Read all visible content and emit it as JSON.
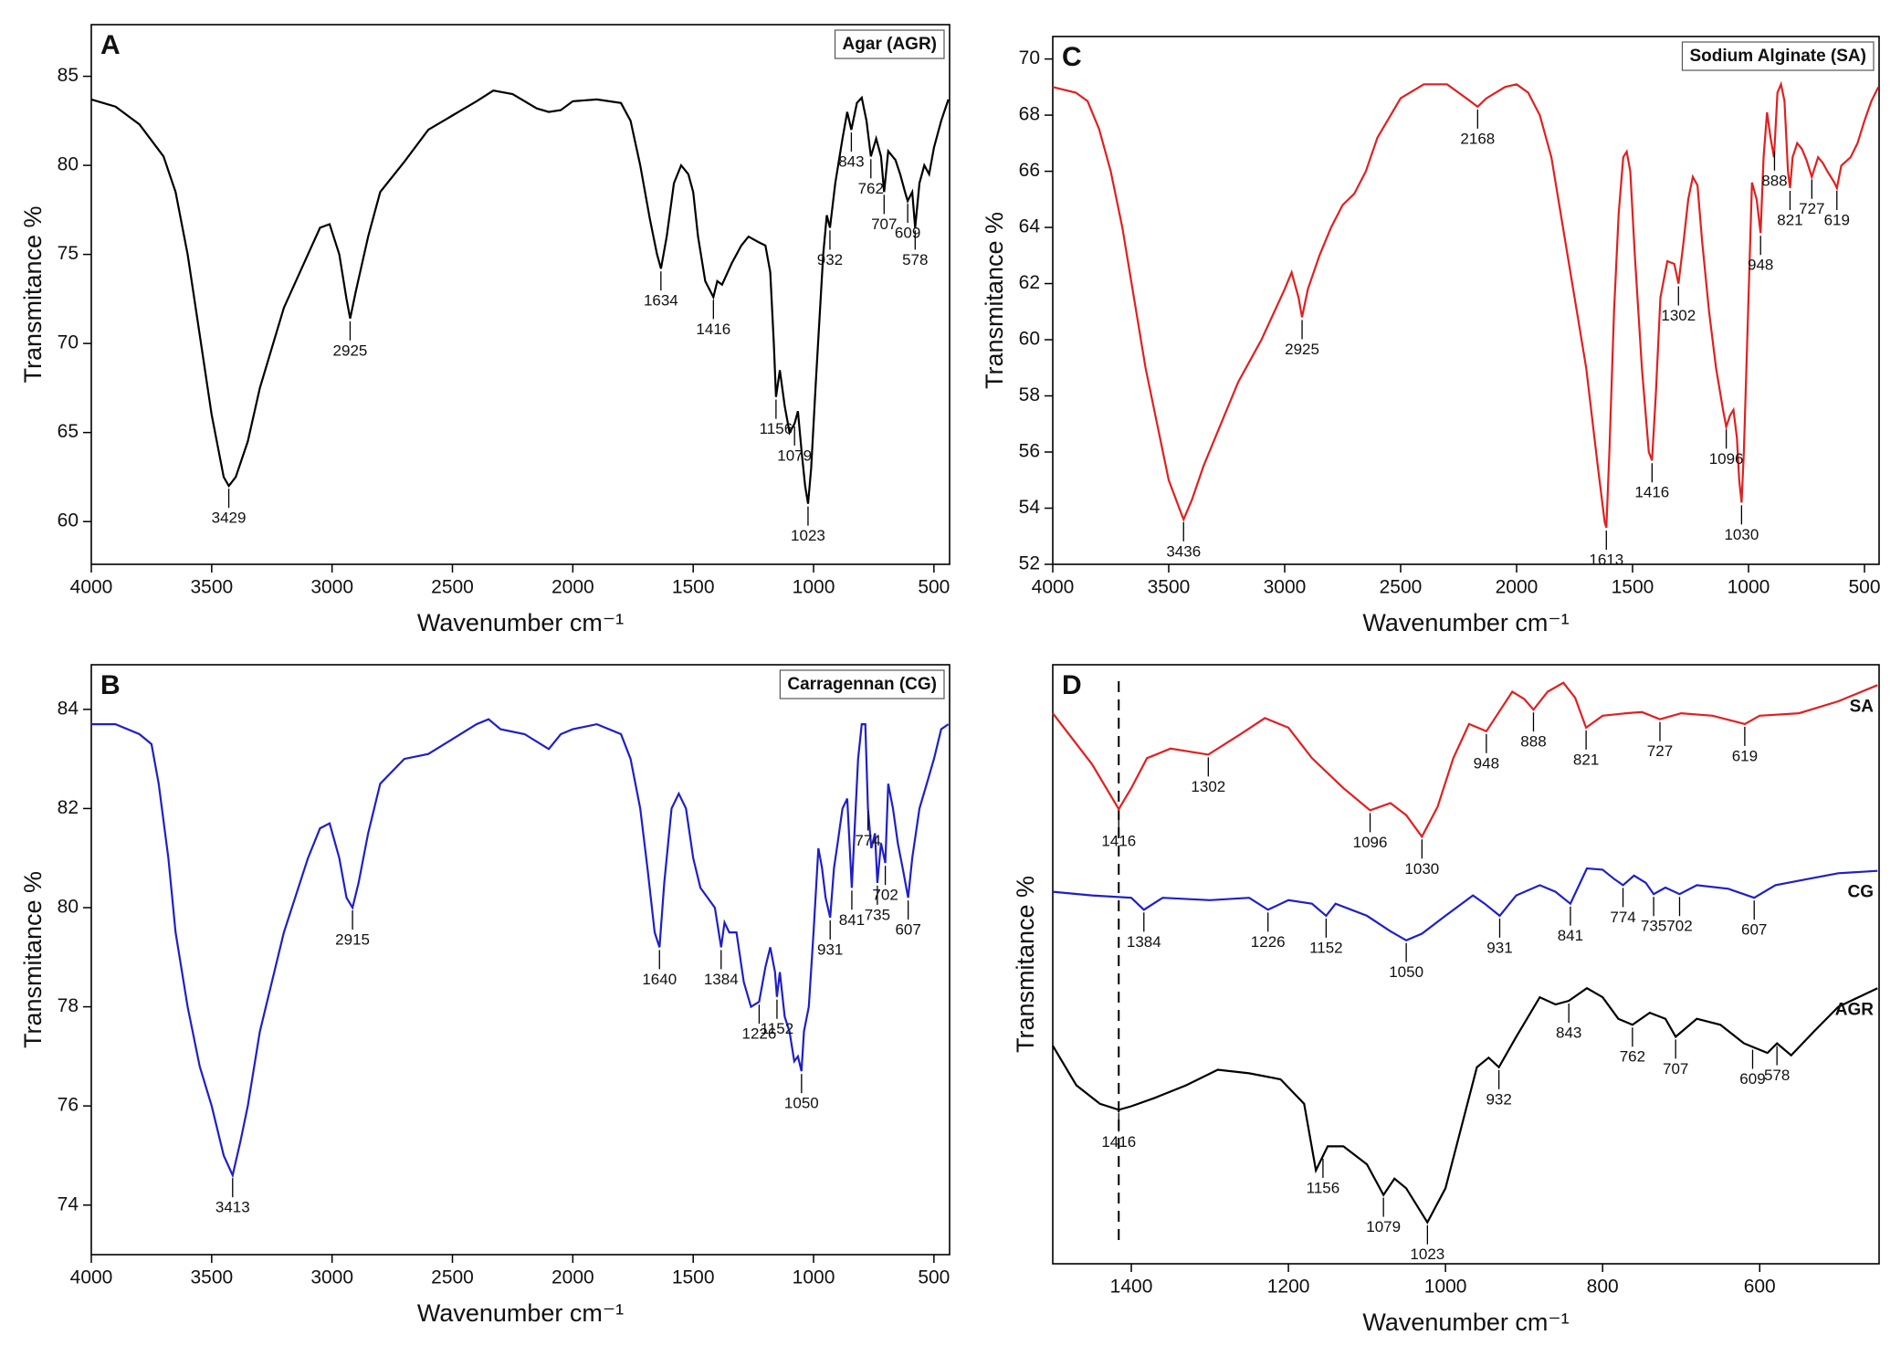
{
  "chart_data": [
    {
      "type": "line",
      "panel": "A",
      "xlabel": "Wavenumber cm⁻¹",
      "ylabel": "Transmitance %",
      "xlim": [
        4000,
        435
      ],
      "ylim": [
        57.6,
        87.9
      ],
      "xticks": [
        4000,
        3500,
        3000,
        2500,
        2000,
        1500,
        1000,
        500
      ],
      "yticks": [
        60,
        65,
        70,
        75,
        80,
        85
      ],
      "series": [
        {
          "name": "Agar (AGR)",
          "color": "#000000",
          "x": [
            4000,
            3900,
            3800,
            3700,
            3650,
            3600,
            3550,
            3500,
            3450,
            3429,
            3400,
            3350,
            3300,
            3200,
            3100,
            3050,
            3010,
            2970,
            2940,
            2925,
            2900,
            2850,
            2800,
            2700,
            2600,
            2500,
            2400,
            2330,
            2250,
            2150,
            2100,
            2050,
            2000,
            1900,
            1800,
            1760,
            1720,
            1680,
            1650,
            1634,
            1610,
            1580,
            1550,
            1520,
            1500,
            1480,
            1450,
            1416,
            1400,
            1380,
            1340,
            1300,
            1270,
            1230,
            1200,
            1180,
            1165,
            1156,
            1140,
            1120,
            1100,
            1079,
            1065,
            1050,
            1035,
            1023,
            1010,
            990,
            960,
            945,
            932,
            910,
            880,
            860,
            843,
            820,
            800,
            780,
            762,
            740,
            720,
            707,
            690,
            660,
            640,
            620,
            609,
            590,
            578,
            560,
            540,
            520,
            500,
            470,
            440
          ],
          "values": [
            83.7,
            83.3,
            82.3,
            80.5,
            78.5,
            75,
            70.5,
            66,
            62.5,
            62,
            62.5,
            64.5,
            67.5,
            72,
            75,
            76.5,
            76.7,
            75,
            72.5,
            71.4,
            73,
            76,
            78.5,
            80.2,
            82,
            82.8,
            83.6,
            84.2,
            84,
            83.2,
            83,
            83.1,
            83.6,
            83.7,
            83.5,
            82.5,
            80,
            77,
            75,
            74.2,
            76,
            79,
            80,
            79.5,
            78.5,
            76,
            73.5,
            72.6,
            73.5,
            73.3,
            74.5,
            75.5,
            76,
            75.7,
            75.5,
            74,
            70,
            67,
            68.5,
            66.5,
            65,
            65.5,
            66.2,
            64,
            62,
            61,
            63,
            68,
            75,
            77.2,
            76.5,
            79,
            81.5,
            83,
            82,
            83.5,
            83.8,
            82.5,
            80.5,
            81.5,
            80.5,
            78.5,
            80.8,
            80.3,
            79.5,
            78.5,
            78,
            78.5,
            76.5,
            79,
            80,
            79.5,
            81,
            82.5,
            83.7
          ],
          "peaks": [
            3429,
            2925,
            1634,
            1416,
            1156,
            1079,
            1023,
            932,
            843,
            762,
            707,
            609,
            578
          ]
        }
      ]
    },
    {
      "type": "line",
      "panel": "B",
      "xlabel": "Wavenumber cm⁻¹",
      "ylabel": "Transmitance %",
      "xlim": [
        4000,
        435
      ],
      "ylim": [
        73,
        84.9
      ],
      "xticks": [
        4000,
        3500,
        3000,
        2500,
        2000,
        1500,
        1000,
        500
      ],
      "yticks": [
        74,
        76,
        78,
        80,
        82,
        84
      ],
      "series": [
        {
          "name": "Carragennan (CG)",
          "color": "#1f1fc8",
          "x": [
            4000,
            3900,
            3800,
            3750,
            3720,
            3680,
            3650,
            3600,
            3550,
            3500,
            3450,
            3413,
            3380,
            3350,
            3300,
            3200,
            3100,
            3050,
            3010,
            2970,
            2940,
            2915,
            2890,
            2850,
            2800,
            2700,
            2600,
            2500,
            2400,
            2350,
            2300,
            2200,
            2100,
            2050,
            2000,
            1900,
            1800,
            1760,
            1720,
            1690,
            1660,
            1640,
            1620,
            1590,
            1560,
            1530,
            1500,
            1470,
            1440,
            1410,
            1384,
            1370,
            1350,
            1320,
            1290,
            1260,
            1226,
            1200,
            1180,
            1160,
            1152,
            1140,
            1120,
            1100,
            1080,
            1065,
            1050,
            1040,
            1020,
            1000,
            980,
            965,
            950,
            931,
            915,
            900,
            880,
            860,
            841,
            830,
            815,
            800,
            785,
            774,
            760,
            745,
            735,
            720,
            702,
            690,
            670,
            650,
            630,
            607,
            590,
            560,
            530,
            500,
            470,
            440
          ],
          "values": [
            83.7,
            83.7,
            83.5,
            83.3,
            82.5,
            81,
            79.5,
            78,
            76.8,
            76,
            75,
            74.6,
            75.3,
            76,
            77.5,
            79.5,
            81,
            81.6,
            81.7,
            81,
            80.2,
            80,
            80.5,
            81.5,
            82.5,
            83,
            83.1,
            83.4,
            83.7,
            83.8,
            83.6,
            83.5,
            83.2,
            83.5,
            83.6,
            83.7,
            83.5,
            83,
            82,
            80.8,
            79.5,
            79.2,
            80.5,
            82,
            82.3,
            82,
            81,
            80.4,
            80.2,
            80,
            79.2,
            79.7,
            79.5,
            79.5,
            78.5,
            78,
            78.1,
            78.8,
            79.2,
            78.7,
            78.2,
            78.7,
            77.8,
            77.5,
            76.9,
            77,
            76.7,
            77.5,
            78,
            79.5,
            81.2,
            80.8,
            80.2,
            79.8,
            80.8,
            81.3,
            82,
            82.2,
            80.4,
            81.5,
            83,
            83.7,
            83.7,
            82,
            81.2,
            81.5,
            80.5,
            81.3,
            80.9,
            82.5,
            82,
            81.3,
            80.8,
            80.2,
            81,
            82,
            82.5,
            83,
            83.6,
            83.7
          ],
          "peaks": [
            3413,
            2915,
            1640,
            1384,
            1226,
            1152,
            1050,
            931,
            841,
            774,
            735,
            702,
            607
          ]
        }
      ]
    },
    {
      "type": "line",
      "panel": "C",
      "xlabel": "Wavenumber cm⁻¹",
      "ylabel": "Transmitance %",
      "xlim": [
        4000,
        437
      ],
      "ylim": [
        52,
        70.8
      ],
      "xticks": [
        4000,
        3500,
        3000,
        2500,
        2000,
        1500,
        1000,
        500
      ],
      "yticks": [
        52,
        54,
        56,
        58,
        60,
        62,
        64,
        66,
        68,
        70
      ],
      "series": [
        {
          "name": "Sodium Alginate (SA)",
          "color": "#e02020",
          "x": [
            4000,
            3900,
            3850,
            3800,
            3750,
            3700,
            3650,
            3600,
            3550,
            3500,
            3450,
            3436,
            3400,
            3350,
            3300,
            3200,
            3100,
            3000,
            2970,
            2940,
            2925,
            2900,
            2850,
            2800,
            2750,
            2700,
            2650,
            2600,
            2500,
            2400,
            2300,
            2250,
            2200,
            2168,
            2130,
            2050,
            2000,
            1950,
            1900,
            1850,
            1800,
            1750,
            1700,
            1650,
            1620,
            1613,
            1600,
            1580,
            1560,
            1540,
            1525,
            1510,
            1490,
            1460,
            1430,
            1416,
            1400,
            1380,
            1350,
            1320,
            1302,
            1280,
            1260,
            1240,
            1220,
            1200,
            1170,
            1140,
            1110,
            1096,
            1080,
            1065,
            1050,
            1040,
            1030,
            1020,
            1000,
            985,
            965,
            948,
            935,
            920,
            905,
            890,
            875,
            860,
            845,
            830,
            821,
            810,
            790,
            770,
            750,
            727,
            700,
            680,
            660,
            630,
            619,
            600,
            560,
            530,
            500,
            470,
            440
          ],
          "values": [
            69,
            68.8,
            68.5,
            67.5,
            66,
            64,
            61.5,
            59,
            57,
            55,
            53.9,
            53.6,
            54.3,
            55.5,
            56.5,
            58.5,
            60,
            61.8,
            62.4,
            61.5,
            60.8,
            61.8,
            63,
            64,
            64.8,
            65.2,
            66,
            67.2,
            68.6,
            69.1,
            69.1,
            68.8,
            68.5,
            68.3,
            68.6,
            69,
            69.1,
            68.8,
            68,
            66.5,
            64,
            61.5,
            59,
            55.5,
            53.5,
            53.3,
            56,
            61,
            64.5,
            66.5,
            66.7,
            66,
            63,
            59,
            56,
            55.7,
            58,
            61.5,
            62.8,
            62.7,
            62,
            63.5,
            65,
            65.8,
            65.5,
            63.5,
            61,
            59,
            57.5,
            56.9,
            57.3,
            57.5,
            56.5,
            55,
            54.2,
            56,
            61.5,
            65.6,
            65,
            63.8,
            66.5,
            68.1,
            67.2,
            66.5,
            68.8,
            69.1,
            68.5,
            66,
            65.4,
            66.5,
            67,
            66.8,
            66.4,
            65.8,
            66.5,
            66.3,
            66,
            65.6,
            65.4,
            66.2,
            66.5,
            67,
            67.8,
            68.5,
            69
          ],
          "peaks": [
            3436,
            2925,
            2168,
            1613,
            1416,
            1302,
            1096,
            1030,
            948,
            888,
            821,
            727,
            619
          ]
        }
      ]
    },
    {
      "type": "line",
      "panel": "D",
      "xlabel": "Wavenumber cm⁻¹",
      "ylabel": "Transmitance %",
      "xlim": [
        1500,
        448
      ],
      "ylim": [
        0,
        100
      ],
      "xticks": [
        1400,
        1200,
        1000,
        800,
        600
      ],
      "vline": 1416,
      "series": [
        {
          "name": "SA",
          "color": "#e02020",
          "x": [
            1500,
            1450,
            1416,
            1400,
            1380,
            1350,
            1302,
            1260,
            1230,
            1200,
            1170,
            1130,
            1096,
            1070,
            1050,
            1030,
            1010,
            990,
            970,
            948,
            930,
            915,
            900,
            888,
            870,
            850,
            835,
            821,
            800,
            770,
            750,
            727,
            700,
            660,
            619,
            600,
            550,
            500,
            450
          ],
          "values": [
            91.9,
            83.4,
            75.9,
            79.4,
            84.4,
            86.0,
            85.0,
            88.5,
            91.1,
            89.5,
            84.4,
            79.4,
            75.7,
            76.9,
            74.9,
            71.3,
            76.3,
            84.4,
            90.1,
            88.9,
            92.5,
            95.5,
            94.3,
            92.5,
            95.5,
            97.0,
            94.5,
            89.5,
            91.5,
            91.9,
            92.1,
            90.9,
            91.9,
            91.5,
            90.1,
            91.5,
            91.9,
            93.9,
            96.6
          ],
          "peaks": [
            1416,
            1302,
            1096,
            1030,
            948,
            888,
            821,
            727,
            619
          ]
        },
        {
          "name": "CG",
          "color": "#1f1fc8",
          "x": [
            1500,
            1450,
            1400,
            1384,
            1360,
            1300,
            1250,
            1226,
            1200,
            1170,
            1152,
            1140,
            1100,
            1070,
            1050,
            1030,
            1000,
            965,
            950,
            931,
            910,
            880,
            860,
            841,
            820,
            800,
            785,
            774,
            760,
            745,
            735,
            720,
            702,
            680,
            640,
            607,
            580,
            540,
            500,
            450
          ],
          "values": [
            62.1,
            61.5,
            61.1,
            59.1,
            61.1,
            60.7,
            61.1,
            59.1,
            60.7,
            60.1,
            58.1,
            60.1,
            58.1,
            55.5,
            54.0,
            55.1,
            58.1,
            61.5,
            60.1,
            58.1,
            61.5,
            63.2,
            62.1,
            60.1,
            66.0,
            65.8,
            64.2,
            63.2,
            64.8,
            63.6,
            61.7,
            62.8,
            61.7,
            63.2,
            62.6,
            61.1,
            63.2,
            64.2,
            65.2,
            65.6
          ],
          "peaks": [
            1384,
            1226,
            1152,
            1050,
            931,
            841,
            774,
            735,
            702,
            607
          ]
        },
        {
          "name": "AGR",
          "color": "#000000",
          "x": [
            1500,
            1470,
            1440,
            1416,
            1400,
            1370,
            1330,
            1290,
            1250,
            1210,
            1180,
            1165,
            1150,
            1130,
            1100,
            1079,
            1065,
            1050,
            1023,
            1000,
            980,
            960,
            945,
            932,
            910,
            880,
            860,
            843,
            820,
            800,
            780,
            762,
            740,
            720,
            707,
            680,
            650,
            620,
            609,
            590,
            578,
            560,
            530,
            500,
            450
          ],
          "values": [
            36.4,
            29.8,
            26.7,
            25.7,
            26.3,
            27.7,
            29.8,
            32.4,
            31.8,
            30.8,
            26.7,
            15.6,
            19.6,
            19.6,
            16.6,
            11.5,
            14.2,
            12.6,
            6.9,
            12.6,
            22.7,
            32.8,
            34.4,
            32.8,
            37.9,
            44.5,
            43.3,
            43.9,
            46.0,
            44.5,
            40.9,
            39.9,
            41.9,
            40.9,
            37.9,
            40.9,
            39.9,
            36.8,
            36.2,
            35.2,
            36.8,
            34.8,
            38.9,
            42.9,
            46.0
          ],
          "peaks": [
            1416,
            1156,
            1079,
            1023,
            932,
            843,
            762,
            707,
            609,
            578
          ]
        }
      ]
    }
  ]
}
